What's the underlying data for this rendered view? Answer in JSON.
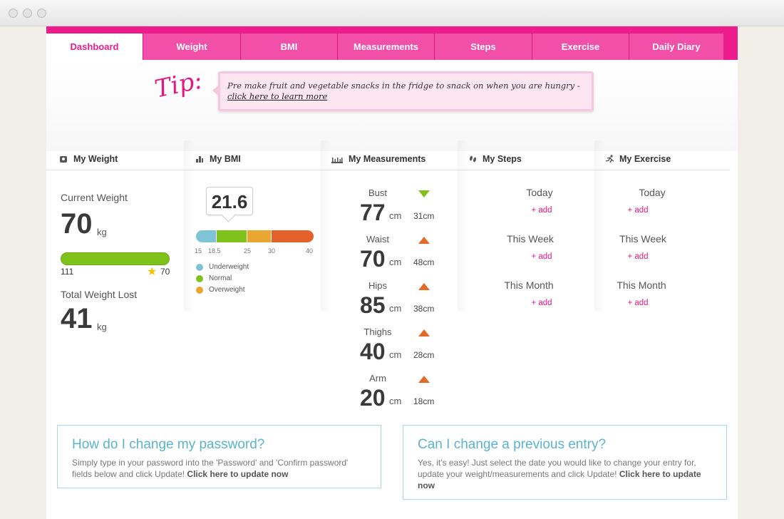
{
  "tabs": [
    "Dashboard",
    "Weight",
    "BMI",
    "Measurements",
    "Steps",
    "Exercise",
    "Daily Diary"
  ],
  "tip": {
    "label": "Tip:",
    "text": "Pre make fruit and vegetable snacks in the fridge to snack on when you are hungry - ",
    "link": "click here to learn more"
  },
  "columns": {
    "weight": "My Weight",
    "bmi": "My BMI",
    "measurements": "My Measurements",
    "steps": "My Steps",
    "exercise": "My Exercise"
  },
  "weight": {
    "current_label": "Current Weight",
    "current_value": "70",
    "unit": "kg",
    "start": "111",
    "goal": "70",
    "goal_progress": 1.0,
    "lost_label": "Total Weight Lost",
    "lost_value": "41",
    "lost_unit": "kg"
  },
  "bmi": {
    "value": "21.6",
    "ticks": [
      "15",
      "18.5",
      "25",
      "30",
      "40"
    ],
    "legend": [
      "Underweight",
      "Normal",
      "Overweight"
    ],
    "colors": {
      "underweight": "#7fc3d6",
      "normal": "#7fc21c",
      "overweight": "#e9a631",
      "obese": "#e4622a"
    }
  },
  "measurements": [
    {
      "label": "Bust",
      "value": "77",
      "unit": "cm",
      "change": "31cm",
      "trend": "down"
    },
    {
      "label": "Waist",
      "value": "70",
      "unit": "cm",
      "change": "48cm",
      "trend": "up"
    },
    {
      "label": "Hips",
      "value": "85",
      "unit": "cm",
      "change": "38cm",
      "trend": "up"
    },
    {
      "label": "Thighs",
      "value": "40",
      "unit": "cm",
      "change": "28cm",
      "trend": "up"
    },
    {
      "label": "Arm",
      "value": "20",
      "unit": "cm",
      "change": "18cm",
      "trend": "up"
    }
  ],
  "steps": {
    "periods": [
      "Today",
      "This Week",
      "This Month"
    ],
    "add": "+ add"
  },
  "exercise": {
    "periods": [
      "Today",
      "This Week",
      "This Month"
    ],
    "add": "+ add"
  },
  "faq": [
    {
      "title": "How do I change my password?",
      "body": "Simply type in your password into the 'Password' and 'Confirm password' fields below and click Update! ",
      "link": "Click here to update now"
    },
    {
      "title": "Can I change a previous entry?",
      "body": "Yes, it's easy! Just select the date you would like to change your entry for, update your weight/measurements and click Update! ",
      "link": "Click here to update now"
    }
  ],
  "accent_color": "#ec1c8c"
}
